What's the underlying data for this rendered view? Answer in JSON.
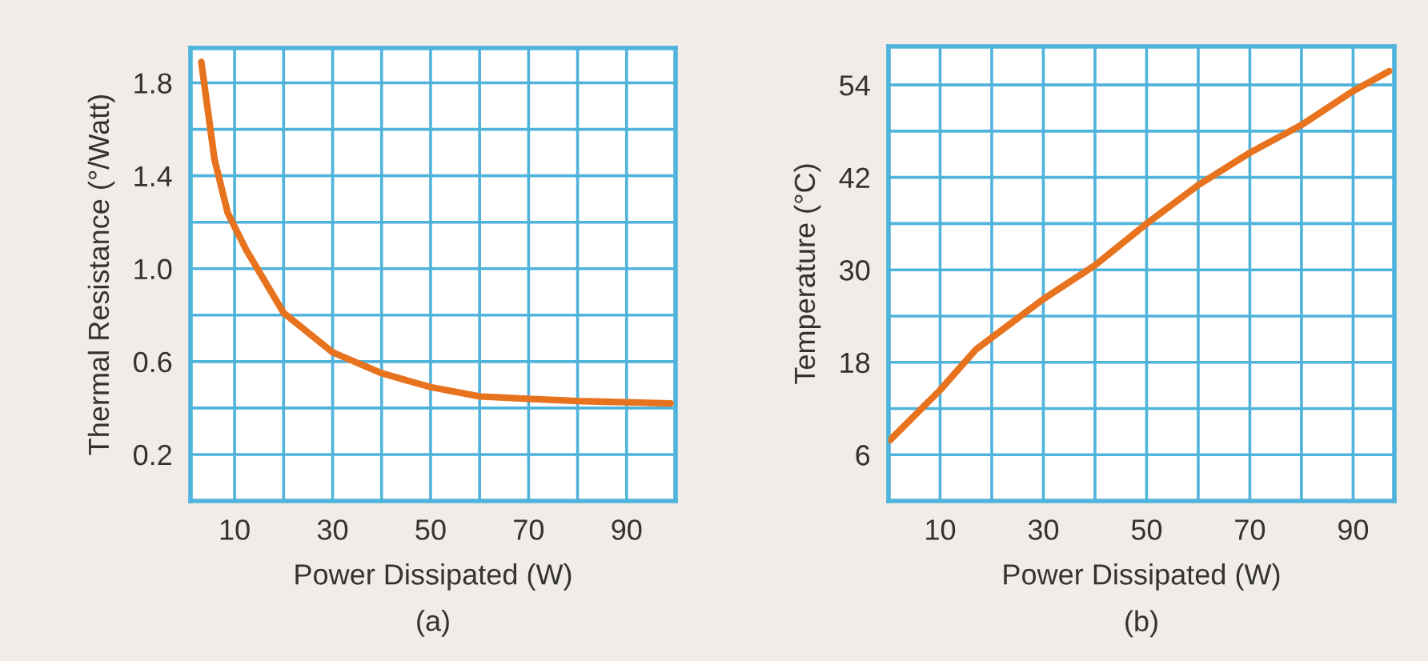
{
  "chart_data": [
    {
      "type": "line",
      "xlabel": "Power Dissipated (W)",
      "ylabel": "Thermal Resistance (°/Watt)",
      "annotations": [
        "(a)"
      ],
      "x": [
        3.2,
        5.9,
        8.6,
        12.4,
        20,
        30,
        40,
        50,
        60,
        70,
        80,
        99
      ],
      "series": [
        {
          "color": "#e8731f",
          "values": [
            1.89,
            1.47,
            1.24,
            1.08,
            0.81,
            0.64,
            0.55,
            0.49,
            0.45,
            0.44,
            0.43,
            0.42
          ]
        }
      ],
      "xlim": [
        1,
        100
      ],
      "ylim": [
        0,
        1.95
      ],
      "xticks": [
        10,
        {
          "value": 20,
          "label": null
        },
        30,
        {
          "value": 40,
          "label": null
        },
        50,
        {
          "value": 60,
          "label": null
        },
        70,
        {
          "value": 80,
          "label": null
        },
        90
      ],
      "yticks": [
        {
          "value": 0.2,
          "label": "0.2"
        },
        {
          "value": 0.4,
          "label": null
        },
        {
          "value": 0.6,
          "label": "0.6"
        },
        {
          "value": 0.8,
          "label": null
        },
        {
          "value": 1.0,
          "label": "1.0"
        },
        {
          "value": 1.2,
          "label": null
        },
        {
          "value": 1.4,
          "label": "1.4"
        },
        {
          "value": 1.6,
          "label": null
        },
        {
          "value": 1.8,
          "label": "1.8"
        }
      ],
      "grid": true,
      "line_style": "solid",
      "marker": "none"
    },
    {
      "type": "line",
      "xlabel": "Power Dissipated (W)",
      "ylabel": "Temperature (°C)",
      "annotations": [
        "(b)"
      ],
      "x": [
        0.3,
        10,
        17,
        30,
        40,
        50,
        60,
        70,
        80,
        90,
        97
      ],
      "series": [
        {
          "color": "#e8731f",
          "values": [
            7.9,
            14.4,
            19.7,
            26.2,
            30.6,
            36,
            41,
            45.2,
            48.8,
            53.2,
            55.8
          ]
        }
      ],
      "xlim": [
        0,
        98
      ],
      "ylim": [
        0,
        59
      ],
      "xticks": [
        10,
        {
          "value": 20,
          "label": null
        },
        30,
        {
          "value": 40,
          "label": null
        },
        50,
        {
          "value": 60,
          "label": null
        },
        70,
        {
          "value": 80,
          "label": null
        },
        90
      ],
      "yticks": [
        6,
        {
          "value": 12,
          "label": null
        },
        18,
        {
          "value": 24,
          "label": null
        },
        30,
        {
          "value": 36,
          "label": null
        },
        42,
        {
          "value": 48,
          "label": null
        },
        54
      ],
      "grid": true,
      "line_style": "solid",
      "marker": "none"
    }
  ]
}
